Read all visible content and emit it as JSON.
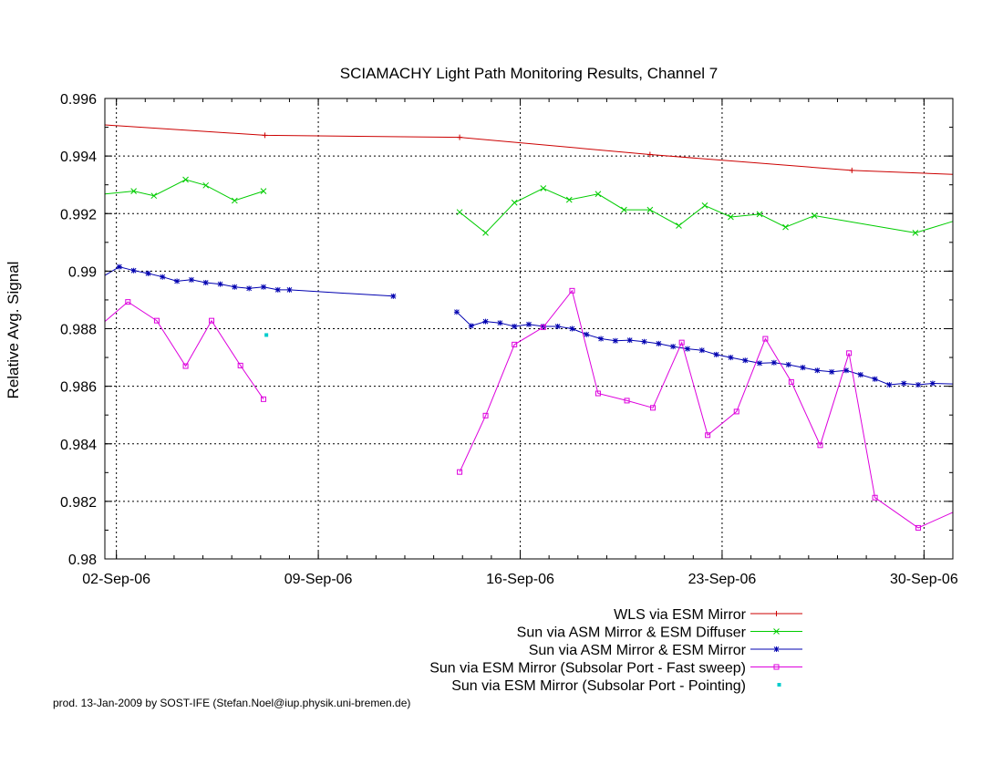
{
  "chart_data": {
    "type": "line",
    "title": "SCIAMACHY Light Path Monitoring Results, Channel 7",
    "xlabel": "",
    "ylabel": "Relative Avg. Signal",
    "x_tick_labels": [
      "02-Sep-06",
      "09-Sep-06",
      "16-Sep-06",
      "23-Sep-06",
      "30-Sep-06"
    ],
    "x_tick_days": [
      2,
      9,
      16,
      23,
      30
    ],
    "xlim_days": [
      1.6,
      31.0
    ],
    "ylim": [
      0.98,
      0.996
    ],
    "y_ticks": [
      0.98,
      0.982,
      0.984,
      0.986,
      0.988,
      0.99,
      0.992,
      0.994,
      0.996
    ],
    "y_tick_labels": [
      "0.98",
      "0.982",
      "0.984",
      "0.986",
      "0.988",
      "0.99",
      "0.992",
      "0.994",
      "0.996"
    ],
    "grid": true,
    "legend_position": "below-right",
    "series": [
      {
        "name": "WLS via ESM Mirror",
        "color": "#cc0000",
        "marker": "plus",
        "points": [
          [
            1.6,
            0.99508
          ],
          [
            7.15,
            0.99472
          ],
          [
            13.9,
            0.99465
          ],
          [
            20.5,
            0.99405
          ],
          [
            27.5,
            0.9935
          ],
          [
            31.0,
            0.99336
          ]
        ],
        "marker_points": [
          [
            7.15,
            0.99472
          ],
          [
            13.9,
            0.99465
          ],
          [
            20.5,
            0.99405
          ],
          [
            27.5,
            0.9935
          ]
        ]
      },
      {
        "name": "Sun via ASM Mirror & ESM Diffuser",
        "color": "#00cc00",
        "marker": "cross",
        "points": [
          [
            1.6,
            0.99268
          ],
          [
            2.6,
            0.99278
          ],
          [
            3.3,
            0.99262
          ],
          [
            4.4,
            0.99318
          ],
          [
            5.1,
            0.99298
          ],
          [
            6.1,
            0.99245
          ],
          [
            7.1,
            0.99278
          ]
        ],
        "points_b": [
          [
            13.9,
            0.99205
          ],
          [
            14.8,
            0.99133
          ],
          [
            15.8,
            0.99238
          ],
          [
            16.8,
            0.99288
          ],
          [
            17.7,
            0.99248
          ],
          [
            18.7,
            0.99268
          ],
          [
            19.6,
            0.99213
          ],
          [
            20.5,
            0.99213
          ],
          [
            21.5,
            0.99158
          ],
          [
            22.4,
            0.99228
          ],
          [
            23.3,
            0.99188
          ],
          [
            24.3,
            0.99198
          ],
          [
            25.2,
            0.99153
          ],
          [
            26.2,
            0.99193
          ],
          [
            29.7,
            0.99133
          ],
          [
            31.0,
            0.99173
          ]
        ]
      },
      {
        "name": "Sun via ASM Mirror & ESM Mirror",
        "color": "#0000b0",
        "marker": "star",
        "points": [
          [
            1.6,
            0.98985
          ],
          [
            2.1,
            0.99015
          ],
          [
            2.6,
            0.99002
          ],
          [
            3.1,
            0.98992
          ],
          [
            3.6,
            0.9898
          ],
          [
            4.1,
            0.98965
          ],
          [
            4.6,
            0.9897
          ],
          [
            5.1,
            0.9896
          ],
          [
            5.6,
            0.98955
          ],
          [
            6.1,
            0.98945
          ],
          [
            6.6,
            0.9894
          ],
          [
            7.1,
            0.98945
          ],
          [
            7.6,
            0.98935
          ],
          [
            8.0,
            0.98935
          ],
          [
            11.6,
            0.98913
          ]
        ],
        "points_b": [
          [
            13.8,
            0.98858
          ],
          [
            14.3,
            0.9881
          ],
          [
            14.8,
            0.98825
          ],
          [
            15.3,
            0.9882
          ],
          [
            15.8,
            0.98808
          ],
          [
            16.3,
            0.98815
          ],
          [
            16.8,
            0.98808
          ],
          [
            17.3,
            0.98808
          ],
          [
            17.8,
            0.988
          ],
          [
            18.3,
            0.9878
          ],
          [
            18.8,
            0.98765
          ],
          [
            19.3,
            0.98758
          ],
          [
            19.8,
            0.9876
          ],
          [
            20.3,
            0.98755
          ],
          [
            20.8,
            0.98748
          ],
          [
            21.3,
            0.98738
          ],
          [
            21.8,
            0.9873
          ],
          [
            22.3,
            0.98725
          ],
          [
            22.8,
            0.9871
          ],
          [
            23.3,
            0.987
          ],
          [
            23.8,
            0.9869
          ],
          [
            24.3,
            0.9868
          ],
          [
            24.8,
            0.98682
          ],
          [
            25.3,
            0.98675
          ],
          [
            25.8,
            0.98665
          ],
          [
            26.3,
            0.98655
          ],
          [
            26.8,
            0.9865
          ],
          [
            27.3,
            0.98655
          ],
          [
            27.8,
            0.9864
          ],
          [
            28.3,
            0.98625
          ],
          [
            28.8,
            0.98605
          ],
          [
            29.3,
            0.9861
          ],
          [
            29.8,
            0.98605
          ],
          [
            30.3,
            0.9861
          ],
          [
            31.0,
            0.98608
          ]
        ]
      },
      {
        "name": "Sun via ESM Mirror (Subsolar Port - Fast sweep)",
        "color": "#dd00dd",
        "marker": "square",
        "points": [
          [
            1.6,
            0.98825
          ],
          [
            2.4,
            0.98893
          ],
          [
            3.4,
            0.98828
          ],
          [
            4.4,
            0.9867
          ],
          [
            5.3,
            0.98828
          ],
          [
            6.3,
            0.98672
          ],
          [
            7.1,
            0.98555
          ]
        ],
        "points_b": [
          [
            13.9,
            0.98302
          ],
          [
            14.8,
            0.98498
          ],
          [
            15.8,
            0.98745
          ],
          [
            16.8,
            0.98805
          ],
          [
            17.8,
            0.98932
          ],
          [
            18.7,
            0.98575
          ],
          [
            19.7,
            0.9855
          ],
          [
            20.6,
            0.98525
          ],
          [
            21.6,
            0.98752
          ],
          [
            22.5,
            0.9843
          ],
          [
            23.5,
            0.98512
          ],
          [
            24.5,
            0.98765
          ],
          [
            25.4,
            0.98615
          ],
          [
            26.4,
            0.98395
          ],
          [
            27.4,
            0.98715
          ],
          [
            28.3,
            0.98213
          ],
          [
            29.8,
            0.98108
          ],
          [
            31.0,
            0.98162
          ]
        ]
      },
      {
        "name": "Sun via ESM Mirror (Subsolar Port - Pointing)",
        "color": "#00cccc",
        "marker": "dot",
        "points": [
          [
            7.2,
            0.98778
          ]
        ]
      }
    ]
  },
  "credit": "prod. 13-Jan-2009 by SOST-IFE (Stefan.Noel@iup.physik.uni-bremen.de)"
}
